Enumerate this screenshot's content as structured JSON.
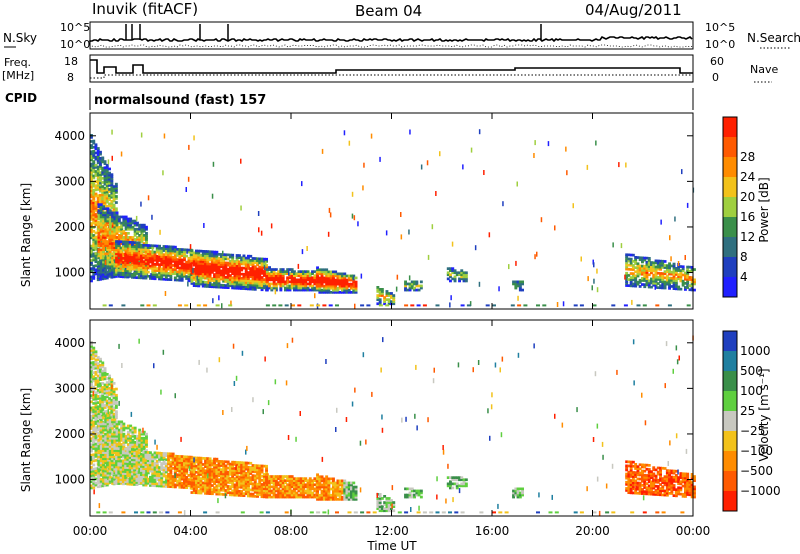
{
  "header": {
    "station": "Inuvik (fitACF)",
    "beam": "Beam 04",
    "date": "04/Aug/2011"
  },
  "strip_labels": {
    "nsky": "N.Sky",
    "nsearch": "N.Search",
    "freq_top": "Freq.",
    "freq_unit": "[MHz]",
    "nave": "Nave",
    "cpid": "CPID",
    "cpid_value": "normalsound (fast) 157"
  },
  "strip_ticks": {
    "noise_left": [
      "10^5",
      "10^0"
    ],
    "noise_right": [
      "10^5",
      "10^0"
    ],
    "freq_left": [
      "18",
      "8"
    ],
    "nave_right": [
      "60",
      "0"
    ]
  },
  "chart_data": [
    {
      "type": "heatmap",
      "panel": "power",
      "ylabel": "Slant Range [km]",
      "yticks": [
        "1000",
        "2000",
        "3000",
        "4000"
      ],
      "ylim": [
        200,
        4500
      ],
      "colorbar": {
        "label": "Power [dB]",
        "ticks": [
          "4",
          "8",
          "12",
          "16",
          "20",
          "24",
          "28"
        ],
        "colors": [
          "#2020ff",
          "#1f3fbf",
          "#2f6f7f",
          "#3a8f4a",
          "#9fcf3f",
          "#f2c21b",
          "#ff8c00",
          "#ff5a00",
          "#ff2000"
        ]
      }
    },
    {
      "type": "heatmap",
      "panel": "velocity",
      "ylabel": "Slant Range [km]",
      "yticks": [
        "1000",
        "2000",
        "3000",
        "4000"
      ],
      "ylim": [
        200,
        4500
      ],
      "colorbar": {
        "label": "Velocity [m s⁻¹]",
        "ticks": [
          "1000",
          "500",
          "100",
          "25",
          "−25",
          "−100",
          "−500",
          "−1000"
        ],
        "colors": [
          "#1f3fbf",
          "#1f7fa0",
          "#3a8f4a",
          "#5fcf3f",
          "#c8c8c0",
          "#f2c21b",
          "#ff8c00",
          "#ff5a00",
          "#ff2000"
        ]
      }
    }
  ],
  "xaxis": {
    "label": "Time UT",
    "ticks": [
      "00:00",
      "04:00",
      "08:00",
      "12:00",
      "16:00",
      "20:00",
      "00:00"
    ]
  }
}
